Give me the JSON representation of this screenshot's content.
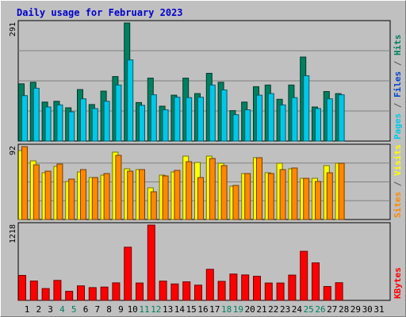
{
  "chart_data": {
    "type": "bar",
    "title": "Daily usage for February 2023",
    "categories": [
      "1",
      "2",
      "3",
      "4",
      "5",
      "6",
      "7",
      "8",
      "9",
      "10",
      "11",
      "12",
      "13",
      "14",
      "15",
      "16",
      "17",
      "18",
      "19",
      "20",
      "21",
      "22",
      "23",
      "24",
      "25",
      "26",
      "27",
      "28",
      "29",
      "30",
      "31"
    ],
    "weekend_days": [
      "4",
      "5",
      "11",
      "12",
      "18",
      "19",
      "25",
      "26"
    ],
    "panels": [
      {
        "id": "hits-files-pages",
        "ylabel_max": "291",
        "ylim": [
          0,
          291
        ],
        "grid": true,
        "right_label": [
          {
            "text": "Pages",
            "color": "#00c8e8"
          },
          {
            "text": " / ",
            "color": "#555555"
          },
          {
            "text": "Files",
            "color": "#0044cc"
          },
          {
            "text": " / ",
            "color": "#555555"
          },
          {
            "text": "Hits",
            "color": "#008060"
          }
        ],
        "series": [
          {
            "name": "Hits",
            "color": "#008060",
            "values": [
              141,
              145,
              96,
              98,
              82,
              127,
              90,
              123,
              159,
              291,
              95,
              155,
              86,
              113,
              155,
              117,
              167,
              145,
              75,
              96,
              134,
              138,
              103,
              138,
              207,
              84,
              122,
              117,
              null,
              null,
              null
            ]
          },
          {
            "name": "Pages",
            "color": "#00c8e8",
            "values": [
              112,
              130,
              84,
              89,
              72,
              104,
              80,
              98,
              138,
              200,
              88,
              114,
              77,
              108,
              107,
              108,
              138,
              126,
              65,
              77,
              113,
              117,
              89,
              107,
              161,
              80,
              104,
              114,
              null,
              null,
              null
            ]
          }
        ]
      },
      {
        "id": "visits-sites",
        "ylabel_max": "92",
        "ylim": [
          0,
          92
        ],
        "grid": true,
        "right_label": [
          {
            "text": "Sites",
            "color": "#ff8800"
          },
          {
            "text": " / ",
            "color": "#555555"
          },
          {
            "text": "Visits",
            "color": "#ffff00"
          }
        ],
        "series": [
          {
            "name": "Visits",
            "color": "#ffff00",
            "values": [
              87,
              74,
              59,
              67,
              48,
              60,
              53,
              56,
              85,
              64,
              63,
              40,
              56,
              60,
              80,
              72,
              80,
              71,
              42,
              58,
              78,
              59,
              71,
              64,
              52,
              52,
              68,
              71,
              null,
              null,
              null
            ]
          },
          {
            "name": "Sites",
            "color": "#ff8800",
            "values": [
              92,
              69,
              61,
              70,
              51,
              63,
              53,
              58,
              81,
              61,
              63,
              35,
              55,
              62,
              73,
              53,
              77,
              68,
              43,
              58,
              78,
              58,
              63,
              65,
              52,
              48,
              59,
              71,
              null,
              null,
              null
            ]
          }
        ]
      },
      {
        "id": "kbytes",
        "ylabel_max": "1218",
        "ylim": [
          0,
          1218
        ],
        "grid": false,
        "right_label": [
          {
            "text": "KBytes",
            "color": "#ff0000"
          }
        ],
        "series": [
          {
            "name": "KBytes",
            "color": "#ff0000",
            "values": [
              404,
              313,
              191,
              323,
              147,
              235,
              206,
              215,
              283,
              860,
              281,
              1218,
              311,
              265,
              300,
              246,
              503,
              308,
              426,
              411,
              390,
              281,
              281,
              409,
              794,
              606,
              224,
              286,
              null,
              null,
              null
            ]
          }
        ]
      }
    ]
  }
}
